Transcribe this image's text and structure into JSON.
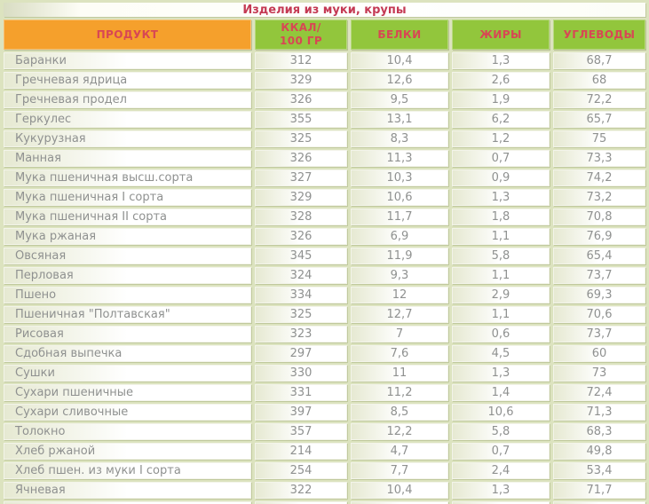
{
  "title": "Изделия из муки, крупы",
  "colors": {
    "background": "#dce3bf",
    "header_orange": "#f5a02c",
    "header_green": "#92c63c",
    "header_text": "#d84754",
    "title_text": "#c43a54",
    "row_text": "#8f9190"
  },
  "chart_data": {
    "type": "table",
    "title": "Изделия из муки, крупы",
    "columns": [
      "ПРОДУКТ",
      "ККАЛ/\n100 ГР",
      "БЕЛКИ",
      "ЖИРЫ",
      "УГЛЕВОДЫ"
    ],
    "rows": [
      {
        "product": "Баранки",
        "kcal": "312",
        "protein": "10,4",
        "fat": "1,3",
        "carbs": "68,7"
      },
      {
        "product": "Гречневая ядрица",
        "kcal": "329",
        "protein": "12,6",
        "fat": "2,6",
        "carbs": "68"
      },
      {
        "product": "Гречневая продел",
        "kcal": "326",
        "protein": "9,5",
        "fat": "1,9",
        "carbs": "72,2"
      },
      {
        "product": "Геркулес",
        "kcal": "355",
        "protein": "13,1",
        "fat": "6,2",
        "carbs": "65,7"
      },
      {
        "product": "Кукурузная",
        "kcal": "325",
        "protein": "8,3",
        "fat": "1,2",
        "carbs": "75"
      },
      {
        "product": "Манная",
        "kcal": "326",
        "protein": "11,3",
        "fat": "0,7",
        "carbs": "73,3"
      },
      {
        "product": "Мука пшеничная высш.сорта",
        "kcal": "327",
        "protein": "10,3",
        "fat": "0,9",
        "carbs": "74,2"
      },
      {
        "product": "Мука пшеничная I сорта",
        "kcal": "329",
        "protein": "10,6",
        "fat": "1,3",
        "carbs": "73,2"
      },
      {
        "product": "Мука пшеничная II сорта",
        "kcal": "328",
        "protein": "11,7",
        "fat": "1,8",
        "carbs": "70,8"
      },
      {
        "product": "Мука ржаная",
        "kcal": "326",
        "protein": "6,9",
        "fat": "1,1",
        "carbs": "76,9"
      },
      {
        "product": "Овсяная",
        "kcal": "345",
        "protein": "11,9",
        "fat": "5,8",
        "carbs": "65,4"
      },
      {
        "product": "Перловая",
        "kcal": "324",
        "protein": "9,3",
        "fat": "1,1",
        "carbs": "73,7"
      },
      {
        "product": "Пшено",
        "kcal": "334",
        "protein": "12",
        "fat": "2,9",
        "carbs": "69,3"
      },
      {
        "product": "Пшеничная \"Полтавская\"",
        "kcal": "325",
        "protein": "12,7",
        "fat": "1,1",
        "carbs": "70,6"
      },
      {
        "product": "Рисовая",
        "kcal": "323",
        "protein": "7",
        "fat": "0,6",
        "carbs": "73,7"
      },
      {
        "product": "Сдобная выпечка",
        "kcal": "297",
        "protein": "7,6",
        "fat": "4,5",
        "carbs": "60"
      },
      {
        "product": "Сушки",
        "kcal": "330",
        "protein": "11",
        "fat": "1,3",
        "carbs": "73"
      },
      {
        "product": "Сухари пшеничные",
        "kcal": "331",
        "protein": "11,2",
        "fat": "1,4",
        "carbs": "72,4"
      },
      {
        "product": "Сухари сливочные",
        "kcal": "397",
        "protein": "8,5",
        "fat": "10,6",
        "carbs": "71,3"
      },
      {
        "product": "Толокно",
        "kcal": "357",
        "protein": "12,2",
        "fat": "5,8",
        "carbs": "68,3"
      },
      {
        "product": "Хлеб ржаной",
        "kcal": "214",
        "protein": "4,7",
        "fat": "0,7",
        "carbs": "49,8"
      },
      {
        "product": "Хлеб пшен. из муки I сорта",
        "kcal": "254",
        "protein": "7,7",
        "fat": "2,4",
        "carbs": "53,4"
      },
      {
        "product": "Ячневая",
        "kcal": "322",
        "protein": "10,4",
        "fat": "1,3",
        "carbs": "71,7"
      }
    ]
  }
}
